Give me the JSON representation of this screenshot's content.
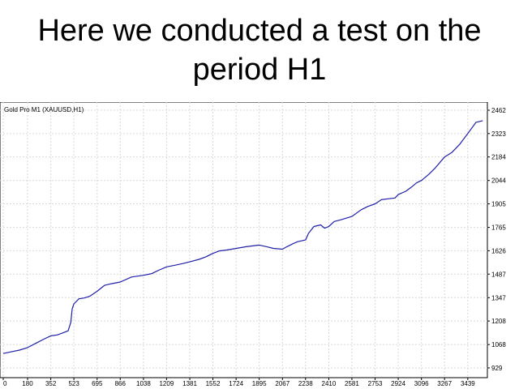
{
  "slide": {
    "title_line1": "Here we conducted a test on the",
    "title_line2": "period H1"
  },
  "chart_data": {
    "type": "line",
    "title": "Gold Pro M1 (XAUUSD,H1)",
    "xlabel": "",
    "ylabel": "",
    "xlim": [
      0,
      3560
    ],
    "ylim": [
      929,
      2462
    ],
    "x_ticks": [
      "0",
      "180",
      "352",
      "523",
      "695",
      "866",
      "1038",
      "1209",
      "1381",
      "1552",
      "1724",
      "1895",
      "2067",
      "2238",
      "2410",
      "2581",
      "2753",
      "2924",
      "3096",
      "3267",
      "3439"
    ],
    "y_ticks": [
      "2462",
      "2323",
      "2184",
      "2044",
      "1905",
      "1765",
      "1626",
      "1487",
      "1347",
      "1208",
      "1068",
      "929"
    ],
    "grid": true,
    "line_color": "#1f1fa8",
    "series": [
      {
        "name": "",
        "x": [
          0,
          60,
          120,
          180,
          240,
          300,
          352,
          400,
          450,
          480,
          500,
          510,
          523,
          560,
          600,
          640,
          695,
          750,
          800,
          866,
          950,
          1038,
          1100,
          1150,
          1209,
          1270,
          1330,
          1381,
          1450,
          1500,
          1552,
          1600,
          1650,
          1724,
          1800,
          1895,
          1950,
          2000,
          2067,
          2100,
          2150,
          2180,
          2238,
          2260,
          2300,
          2350,
          2380,
          2410,
          2450,
          2500,
          2581,
          2650,
          2700,
          2753,
          2800,
          2850,
          2900,
          2924,
          2980,
          3030,
          3060,
          3096,
          3150,
          3200,
          3267,
          3320,
          3380,
          3439,
          3500,
          3550
        ],
        "y": [
          1015,
          1025,
          1035,
          1050,
          1075,
          1100,
          1120,
          1125,
          1140,
          1150,
          1200,
          1280,
          1310,
          1340,
          1345,
          1355,
          1385,
          1420,
          1430,
          1440,
          1470,
          1480,
          1490,
          1510,
          1530,
          1540,
          1550,
          1560,
          1575,
          1590,
          1610,
          1625,
          1630,
          1640,
          1650,
          1660,
          1650,
          1640,
          1635,
          1650,
          1670,
          1680,
          1690,
          1730,
          1770,
          1780,
          1760,
          1770,
          1800,
          1810,
          1830,
          1870,
          1890,
          1905,
          1930,
          1935,
          1940,
          1960,
          1980,
          2010,
          2030,
          2044,
          2080,
          2120,
          2184,
          2210,
          2260,
          2323,
          2390,
          2400
        ]
      }
    ]
  }
}
